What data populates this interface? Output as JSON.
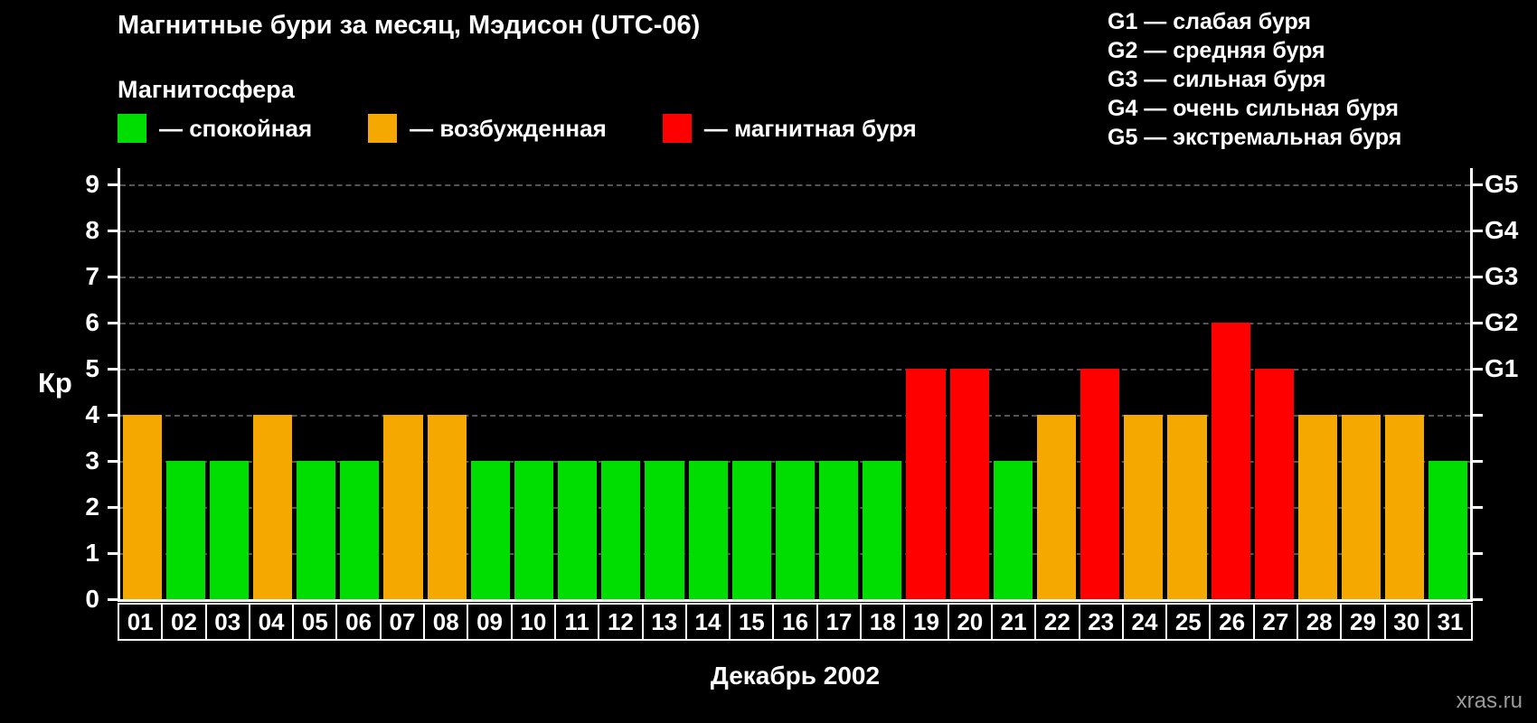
{
  "title": "Магнитные бури за месяц, Мэдисон (UTC-06)",
  "subtitle": "Магнитосфера",
  "legend": {
    "items": [
      {
        "name": "quiet",
        "label": "— спокойная",
        "color": "#00dd00"
      },
      {
        "name": "excited",
        "label": "— возбужденная",
        "color": "#f5a800"
      },
      {
        "name": "storm",
        "label": "— магнитная буря",
        "color": "#ff0000"
      }
    ]
  },
  "storm_scale": [
    "G1 — слабая буря",
    "G2 — средняя буря",
    "G3 — сильная буря",
    "G4 — очень сильная буря",
    "G5 — экстремальная буря"
  ],
  "chart_data": {
    "type": "bar",
    "title": "Магнитные бури за месяц, Мэдисон (UTC-06)",
    "xlabel": "Декабрь 2002",
    "ylabel": "Кр",
    "ylim": [
      0,
      9
    ],
    "grid": "dashed horizontal",
    "legend_position": "top-left",
    "yticks": [
      "0",
      "1",
      "2",
      "3",
      "4",
      "5",
      "6",
      "7",
      "8",
      "9"
    ],
    "right_axis": [
      {
        "label": "G1",
        "value": 5
      },
      {
        "label": "G2",
        "value": 6
      },
      {
        "label": "G3",
        "value": 7
      },
      {
        "label": "G4",
        "value": 8
      },
      {
        "label": "G5",
        "value": 9
      }
    ],
    "categories": [
      "01",
      "02",
      "03",
      "04",
      "05",
      "06",
      "07",
      "08",
      "09",
      "10",
      "11",
      "12",
      "13",
      "14",
      "15",
      "16",
      "17",
      "18",
      "19",
      "20",
      "21",
      "22",
      "23",
      "24",
      "25",
      "26",
      "27",
      "28",
      "29",
      "30",
      "31"
    ],
    "values": [
      4,
      3,
      3,
      4,
      3,
      3,
      4,
      4,
      3,
      3,
      3,
      3,
      3,
      3,
      3,
      3,
      3,
      3,
      5,
      5,
      3,
      4,
      5,
      4,
      4,
      6,
      5,
      4,
      4,
      4,
      3
    ],
    "statuses": [
      "excited",
      "quiet",
      "quiet",
      "excited",
      "quiet",
      "quiet",
      "excited",
      "excited",
      "quiet",
      "quiet",
      "quiet",
      "quiet",
      "quiet",
      "quiet",
      "quiet",
      "quiet",
      "quiet",
      "quiet",
      "storm",
      "storm",
      "quiet",
      "excited",
      "storm",
      "excited",
      "excited",
      "storm",
      "storm",
      "excited",
      "excited",
      "excited",
      "quiet"
    ]
  },
  "colors": {
    "background": "#000000",
    "text": "#ffffff",
    "grid": "#555555",
    "axis": "#ffffff"
  },
  "watermark": "xras.ru"
}
